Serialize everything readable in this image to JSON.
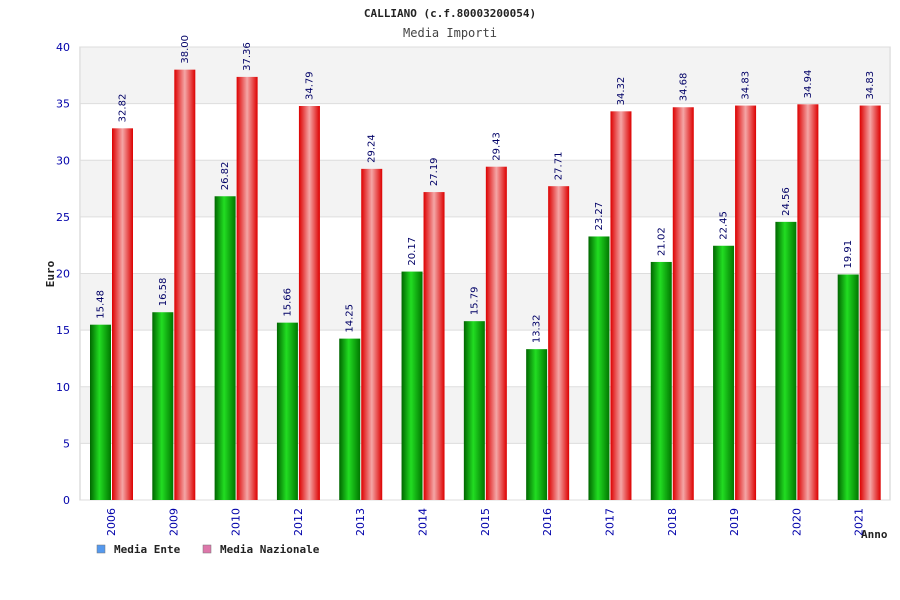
{
  "chart_data": {
    "type": "bar",
    "title": "CALLIANO (c.f.80003200054)",
    "subtitle": "Media Importi",
    "xlabel": "Anno",
    "ylabel": "Euro",
    "ylim": [
      0,
      40
    ],
    "yticks": [
      "0",
      "5",
      "10",
      "15",
      "20",
      "25",
      "30",
      "35",
      "40"
    ],
    "grid": true,
    "legend_position": "bottom-left",
    "categories": [
      "2006",
      "2009",
      "2010",
      "2012",
      "2013",
      "2014",
      "2015",
      "2016",
      "2017",
      "2018",
      "2019",
      "2020",
      "2021"
    ],
    "series": [
      {
        "name": "Media Ente",
        "values": [
          15.48,
          16.58,
          26.82,
          15.66,
          14.25,
          20.17,
          15.79,
          13.32,
          23.27,
          21.02,
          22.45,
          24.56,
          19.91
        ],
        "labels": [
          "15.48",
          "16.58",
          "26.82",
          "15.66",
          "14.25",
          "20.17",
          "15.79",
          "13.32",
          "23.27",
          "21.02",
          "22.45",
          "24.56",
          "19.91"
        ],
        "color": "#00aa00",
        "legend_color": "#5599ee"
      },
      {
        "name": "Media Nazionale",
        "values": [
          32.82,
          38.0,
          37.36,
          34.79,
          29.24,
          27.19,
          29.43,
          27.71,
          34.32,
          34.68,
          34.83,
          34.94,
          34.83
        ],
        "labels": [
          "32.82",
          "38.00",
          "37.36",
          "34.79",
          "29.24",
          "27.19",
          "29.43",
          "27.71",
          "34.32",
          "34.68",
          "34.83",
          "34.94",
          "34.83"
        ],
        "color": "#ee1111",
        "legend_color": "#dd77aa"
      }
    ]
  }
}
